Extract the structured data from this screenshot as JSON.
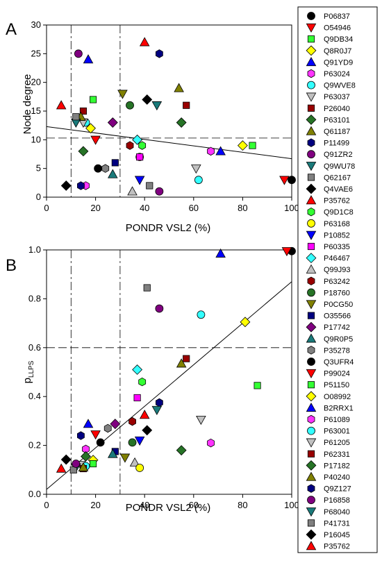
{
  "chart_data": [
    {
      "type": "scatter",
      "panel": "A",
      "xlabel": "PONDR VSL2 (%)",
      "ylabel": "Node degree",
      "xlim": [
        0,
        100
      ],
      "ylim": [
        0,
        30
      ],
      "xticks": [
        0,
        20,
        40,
        60,
        80,
        100
      ],
      "yticks": [
        0,
        5,
        10,
        15,
        20,
        25,
        30
      ],
      "vlines": [
        10,
        30
      ],
      "hlines": [
        10.3
      ],
      "fit_line": [
        [
          0,
          12.3
        ],
        [
          100,
          6.7
        ]
      ],
      "points": [
        {
          "id": "P06837",
          "x": 100,
          "y": 3
        },
        {
          "id": "O54946",
          "x": 97,
          "y": 3
        },
        {
          "id": "Q9DB34",
          "x": 84,
          "y": 9
        },
        {
          "id": "Q8R0J7",
          "x": 80,
          "y": 9
        },
        {
          "id": "Q91YD9",
          "x": 71,
          "y": 8
        },
        {
          "id": "P63024",
          "x": 67,
          "y": 8
        },
        {
          "id": "Q9WVE8",
          "x": 62,
          "y": 3
        },
        {
          "id": "P63037",
          "x": 61,
          "y": 5
        },
        {
          "id": "P26040",
          "x": 57,
          "y": 16
        },
        {
          "id": "P63101",
          "x": 55,
          "y": 13
        },
        {
          "id": "Q61187",
          "x": 54,
          "y": 19
        },
        {
          "id": "P11499",
          "x": 46,
          "y": 25
        },
        {
          "id": "Q91ZR2",
          "x": 46,
          "y": 1
        },
        {
          "id": "Q9WU78",
          "x": 45,
          "y": 16
        },
        {
          "id": "Q62167",
          "x": 42,
          "y": 2
        },
        {
          "id": "Q4VAE6",
          "x": 41,
          "y": 17
        },
        {
          "id": "P35762",
          "x": 40,
          "y": 27
        },
        {
          "id": "Q9D1C8",
          "x": 39,
          "y": 9
        },
        {
          "id": "P63168",
          "x": 38,
          "y": 7
        },
        {
          "id": "P10852",
          "x": 38,
          "y": 3
        },
        {
          "id": "P60335",
          "x": 38,
          "y": 7
        },
        {
          "id": "P46467",
          "x": 37,
          "y": 10
        },
        {
          "id": "Q99J93",
          "x": 35,
          "y": 1
        },
        {
          "id": "P63242",
          "x": 34,
          "y": 9
        },
        {
          "id": "P18760",
          "x": 34,
          "y": 16
        },
        {
          "id": "P0CG50",
          "x": 31,
          "y": 18
        },
        {
          "id": "O35566",
          "x": 28,
          "y": 6
        },
        {
          "id": "P17742",
          "x": 27,
          "y": 13
        },
        {
          "id": "Q9R0P5",
          "x": 27,
          "y": 4
        },
        {
          "id": "P35278",
          "x": 24,
          "y": 5
        },
        {
          "id": "Q3UFR4",
          "x": 21,
          "y": 5
        },
        {
          "id": "P99024",
          "x": 20,
          "y": 10
        },
        {
          "id": "P51150",
          "x": 19,
          "y": 17
        },
        {
          "id": "O08992",
          "x": 18,
          "y": 12
        },
        {
          "id": "B2RRX1",
          "x": 17,
          "y": 24
        },
        {
          "id": "P61089",
          "x": 16,
          "y": 2
        },
        {
          "id": "P63001",
          "x": 16,
          "y": 13
        },
        {
          "id": "P61205",
          "x": 15,
          "y": 13
        },
        {
          "id": "P62331",
          "x": 15,
          "y": 15
        },
        {
          "id": "P17182",
          "x": 15,
          "y": 8
        },
        {
          "id": "P40240",
          "x": 14,
          "y": 14
        },
        {
          "id": "Q9Z127",
          "x": 14,
          "y": 2
        },
        {
          "id": "P16858",
          "x": 13,
          "y": 25
        },
        {
          "id": "P68040",
          "x": 12,
          "y": 13
        },
        {
          "id": "P41731",
          "x": 12,
          "y": 14
        },
        {
          "id": "P16045",
          "x": 8,
          "y": 2
        },
        {
          "id": "P35762",
          "x": 6,
          "y": 16
        }
      ]
    },
    {
      "type": "scatter",
      "panel": "B",
      "xlabel": "PONDR VSL2 (%)",
      "ylabel": "p",
      "ylabel_sub": "LLPS",
      "xlim": [
        0,
        100
      ],
      "ylim": [
        0,
        1
      ],
      "xticks": [
        0,
        20,
        40,
        60,
        80,
        100
      ],
      "yticks": [
        0.0,
        0.2,
        0.4,
        0.6,
        0.8,
        1.0
      ],
      "vlines": [
        10,
        30
      ],
      "hlines": [
        0.6
      ],
      "fit_line": [
        [
          0,
          0.02
        ],
        [
          100,
          0.87
        ]
      ],
      "points": [
        {
          "id": "Q3UFR4",
          "x": 100,
          "y": 0.995
        },
        {
          "id": "P99024",
          "x": 98,
          "y": 0.995
        },
        {
          "id": "B2RRX1",
          "x": 71,
          "y": 0.985
        },
        {
          "id": "P41731",
          "x": 41,
          "y": 0.845
        },
        {
          "id": "P16858",
          "x": 46,
          "y": 0.76
        },
        {
          "id": "P63001",
          "x": 63,
          "y": 0.735
        },
        {
          "id": "O08992",
          "x": 81,
          "y": 0.705
        },
        {
          "id": "P62331",
          "x": 57,
          "y": 0.555
        },
        {
          "id": "P40240",
          "x": 55,
          "y": 0.535
        },
        {
          "id": "P46467",
          "x": 37,
          "y": 0.51
        },
        {
          "id": "Q9D1C8",
          "x": 39,
          "y": 0.46
        },
        {
          "id": "P51150",
          "x": 86,
          "y": 0.445
        },
        {
          "id": "P60335",
          "x": 37,
          "y": 0.395
        },
        {
          "id": "P11499",
          "x": 46,
          "y": 0.375
        },
        {
          "id": "P68040",
          "x": 45,
          "y": 0.345
        },
        {
          "id": "P35762",
          "x": 40,
          "y": 0.325
        },
        {
          "id": "P61205",
          "x": 63,
          "y": 0.305
        },
        {
          "id": "P63242",
          "x": 35,
          "y": 0.298
        },
        {
          "id": "P17742",
          "x": 28,
          "y": 0.288
        },
        {
          "id": "Q91YD9",
          "x": 17,
          "y": 0.288
        },
        {
          "id": "P35278",
          "x": 25,
          "y": 0.27
        },
        {
          "id": "Q4VAE6",
          "x": 41,
          "y": 0.262
        },
        {
          "id": "O54946",
          "x": 20,
          "y": 0.245
        },
        {
          "id": "Q9Z127",
          "x": 14,
          "y": 0.24
        },
        {
          "id": "P10852",
          "x": 38,
          "y": 0.22
        },
        {
          "id": "P06837",
          "x": 22,
          "y": 0.212
        },
        {
          "id": "P18760",
          "x": 35,
          "y": 0.212
        },
        {
          "id": "P63024",
          "x": 67,
          "y": 0.21
        },
        {
          "id": "P61089",
          "x": 16,
          "y": 0.185
        },
        {
          "id": "P17182",
          "x": 55,
          "y": 0.18
        },
        {
          "id": "Q99J93",
          "x": 36,
          "y": 0.13
        },
        {
          "id": "O35566",
          "x": 28,
          "y": 0.175
        },
        {
          "id": "Q9R0P5",
          "x": 27,
          "y": 0.165
        },
        {
          "id": "P0CG50",
          "x": 32,
          "y": 0.15
        },
        {
          "id": "P63101",
          "x": 16,
          "y": 0.155
        },
        {
          "id": "Q8R0J7",
          "x": 19,
          "y": 0.14
        },
        {
          "id": "P16045",
          "x": 8,
          "y": 0.142
        },
        {
          "id": "Q9DB34",
          "x": 19,
          "y": 0.125
        },
        {
          "id": "P63037",
          "x": 14,
          "y": 0.12
        },
        {
          "id": "Q9WVE8",
          "x": 16,
          "y": 0.115
        },
        {
          "id": "P63168",
          "x": 38,
          "y": 0.108
        },
        {
          "id": "Q9WU78",
          "x": 12,
          "y": 0.11
        },
        {
          "id": "P26040",
          "x": 15,
          "y": 0.105
        },
        {
          "id": "Q61187",
          "x": 15,
          "y": 0.11
        },
        {
          "id": "P35762",
          "x": 6,
          "y": 0.105
        },
        {
          "id": "Q62167",
          "x": 11,
          "y": 0.1
        },
        {
          "id": "Q91ZR2",
          "x": 12,
          "y": 0.125
        }
      ]
    }
  ],
  "panels": {
    "a": {
      "letter": "A"
    },
    "b": {
      "letter": "B"
    }
  },
  "legend": [
    {
      "id": "P06837",
      "shape": "circle",
      "color": "#000000"
    },
    {
      "id": "O54946",
      "shape": "triangle-down",
      "color": "#ff0000"
    },
    {
      "id": "Q9DB34",
      "shape": "square",
      "color": "#33ff33"
    },
    {
      "id": "Q8R0J7",
      "shape": "diamond",
      "color": "#ffff00"
    },
    {
      "id": "Q91YD9",
      "shape": "triangle-up",
      "color": "#0000ff"
    },
    {
      "id": "P63024",
      "shape": "hexagon",
      "color": "#ff33ff"
    },
    {
      "id": "Q9WVE8",
      "shape": "circle",
      "color": "#33ffff"
    },
    {
      "id": "P63037",
      "shape": "triangle-down",
      "color": "#c0c0c0"
    },
    {
      "id": "P26040",
      "shape": "square",
      "color": "#990000"
    },
    {
      "id": "P63101",
      "shape": "diamond",
      "color": "#267326"
    },
    {
      "id": "Q61187",
      "shape": "triangle-up",
      "color": "#808000"
    },
    {
      "id": "P11499",
      "shape": "hexagon",
      "color": "#000080"
    },
    {
      "id": "Q91ZR2",
      "shape": "circle",
      "color": "#800080"
    },
    {
      "id": "Q9WU78",
      "shape": "triangle-down",
      "color": "#1a7a7a"
    },
    {
      "id": "Q62167",
      "shape": "square",
      "color": "#808080"
    },
    {
      "id": "Q4VAE6",
      "shape": "diamond",
      "color": "#000000"
    },
    {
      "id": "P35762",
      "shape": "triangle-up",
      "color": "#ff0000"
    },
    {
      "id": "Q9D1C8",
      "shape": "hexagon",
      "color": "#33ff33"
    },
    {
      "id": "P63168",
      "shape": "circle",
      "color": "#ffff00"
    },
    {
      "id": "P10852",
      "shape": "triangle-down",
      "color": "#0000ff"
    },
    {
      "id": "P60335",
      "shape": "square",
      "color": "#ff00ff"
    },
    {
      "id": "P46467",
      "shape": "diamond",
      "color": "#33ffff"
    },
    {
      "id": "Q99J93",
      "shape": "triangle-up",
      "color": "#c0c0c0"
    },
    {
      "id": "P63242",
      "shape": "hexagon",
      "color": "#990000"
    },
    {
      "id": "P18760",
      "shape": "circle",
      "color": "#267326"
    },
    {
      "id": "P0CG50",
      "shape": "triangle-down",
      "color": "#808000"
    },
    {
      "id": "O35566",
      "shape": "square",
      "color": "#000080"
    },
    {
      "id": "P17742",
      "shape": "diamond",
      "color": "#800080"
    },
    {
      "id": "Q9R0P5",
      "shape": "triangle-up",
      "color": "#1a7a7a"
    },
    {
      "id": "P35278",
      "shape": "hexagon",
      "color": "#808080"
    },
    {
      "id": "Q3UFR4",
      "shape": "circle",
      "color": "#000000"
    },
    {
      "id": "P99024",
      "shape": "triangle-down",
      "color": "#ff0000"
    },
    {
      "id": "P51150",
      "shape": "square",
      "color": "#33ff33"
    },
    {
      "id": "O08992",
      "shape": "diamond",
      "color": "#ffff00"
    },
    {
      "id": "B2RRX1",
      "shape": "triangle-up",
      "color": "#0000ff"
    },
    {
      "id": "P61089",
      "shape": "hexagon",
      "color": "#ff33ff"
    },
    {
      "id": "P63001",
      "shape": "circle",
      "color": "#33ffff"
    },
    {
      "id": "P61205",
      "shape": "triangle-down",
      "color": "#c0c0c0"
    },
    {
      "id": "P62331",
      "shape": "square",
      "color": "#990000"
    },
    {
      "id": "P17182",
      "shape": "diamond",
      "color": "#267326"
    },
    {
      "id": "P40240",
      "shape": "triangle-up",
      "color": "#808000"
    },
    {
      "id": "Q9Z127",
      "shape": "hexagon",
      "color": "#000080"
    },
    {
      "id": "P16858",
      "shape": "circle",
      "color": "#800080"
    },
    {
      "id": "P68040",
      "shape": "triangle-down",
      "color": "#1a7a7a"
    },
    {
      "id": "P41731",
      "shape": "square",
      "color": "#808080"
    },
    {
      "id": "P16045",
      "shape": "diamond",
      "color": "#000000"
    },
    {
      "id": "P35762",
      "shape": "triangle-up",
      "color": "#ff0000"
    }
  ]
}
